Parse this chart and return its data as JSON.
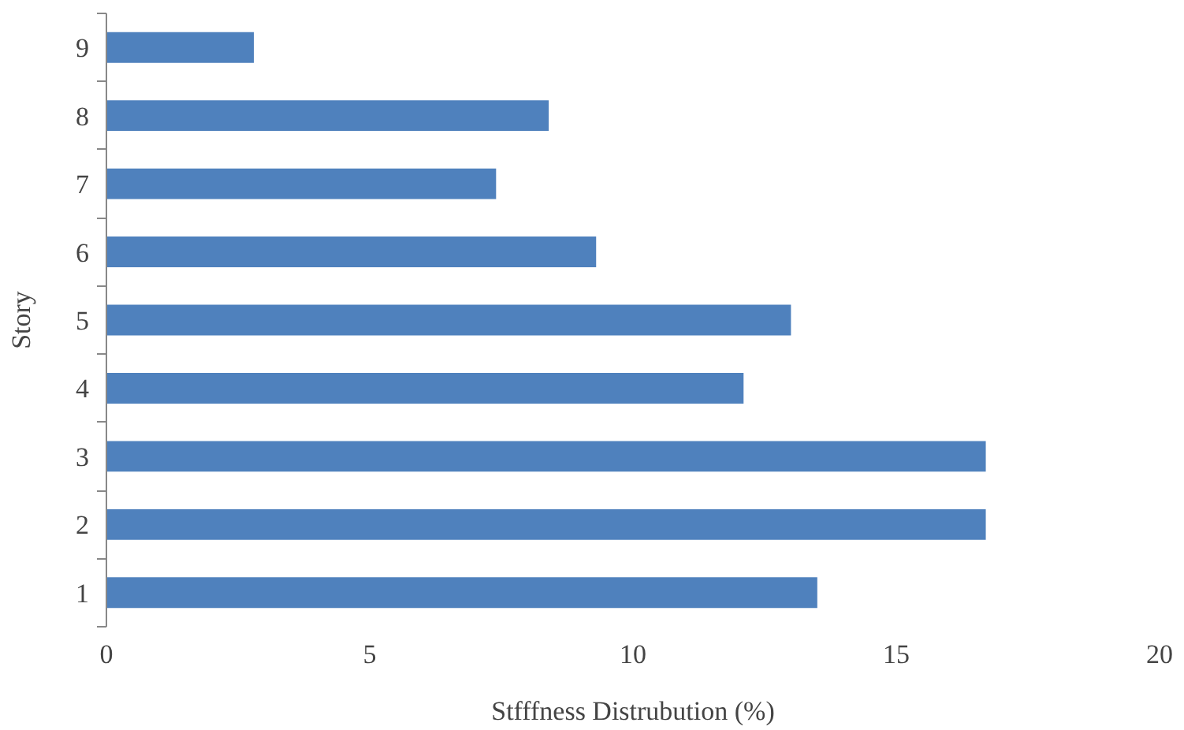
{
  "chart_data": {
    "type": "bar",
    "orientation": "horizontal",
    "xlabel": "Stfffness Distrubution (%)",
    "ylabel": "Story",
    "categories": [
      "9",
      "8",
      "7",
      "6",
      "5",
      "4",
      "3",
      "2",
      "1"
    ],
    "values": [
      2.8,
      8.4,
      7.4,
      9.3,
      13.0,
      12.1,
      16.7,
      16.7,
      13.5
    ],
    "color": "#4f81bd",
    "xlim": [
      0,
      20
    ],
    "xticks": [
      0,
      5,
      10,
      15,
      20
    ],
    "grid": false
  }
}
